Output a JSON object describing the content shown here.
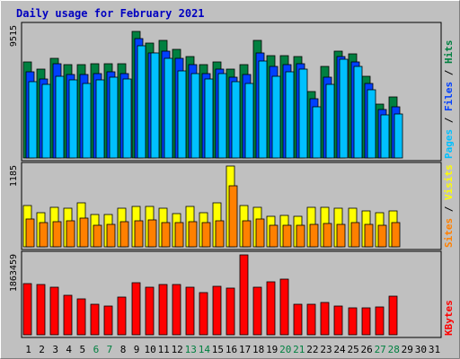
{
  "title": "Daily usage for February 2021",
  "colors": {
    "background": "#c0c0c0",
    "title": "#0000c0",
    "hits": "#008040",
    "files": "#0040ff",
    "pages": "#00c0ff",
    "visits": "#ffff00",
    "sites": "#ff8000",
    "kbytes": "#ff0000",
    "weekday_label": "#000000",
    "weekend_label": "#008040"
  },
  "chart_data": {
    "type": "bar",
    "categories": [
      "1",
      "2",
      "3",
      "4",
      "5",
      "6",
      "7",
      "8",
      "9",
      "10",
      "11",
      "12",
      "13",
      "14",
      "15",
      "16",
      "17",
      "18",
      "19",
      "20",
      "21",
      "22",
      "23",
      "24",
      "25",
      "26",
      "27",
      "28",
      "29",
      "30",
      "31"
    ],
    "weekend_days": [
      "6",
      "7",
      "13",
      "14",
      "20",
      "21",
      "27",
      "28"
    ],
    "panels": [
      {
        "name": "hits-files-pages",
        "max_label": "9515",
        "ymax": 9515,
        "legend": [
          "Pages",
          "Files",
          "Hits"
        ],
        "series": [
          {
            "name": "Hits",
            "color": "#008040",
            "values": [
              6900,
              6400,
              7200,
              6700,
              6700,
              6800,
              6800,
              6800,
              9100,
              8300,
              8500,
              7800,
              7300,
              6700,
              6900,
              6400,
              6700,
              8500,
              7400,
              7400,
              7300,
              4800,
              6600,
              7700,
              7500,
              5900,
              3900,
              4400,
              0,
              0,
              0
            ]
          },
          {
            "name": "Files",
            "color": "#0040ff",
            "values": [
              6200,
              5700,
              6800,
              6000,
              6000,
              6100,
              6200,
              6100,
              8600,
              7600,
              7700,
              7200,
              6700,
              6100,
              6400,
              5800,
              6000,
              7600,
              6600,
              6700,
              6800,
              4300,
              5800,
              7300,
              6900,
              5400,
              3500,
              3700,
              0,
              0,
              0
            ]
          },
          {
            "name": "Pages",
            "color": "#00c0ff",
            "values": [
              5500,
              5300,
              5900,
              5600,
              5400,
              5600,
              5800,
              5700,
              8100,
              7600,
              7200,
              6300,
              6100,
              5700,
              6100,
              5500,
              5400,
              7000,
              5900,
              6200,
              6400,
              3700,
              5300,
              7100,
              6600,
              4900,
              3100,
              3200,
              0,
              0,
              0
            ]
          }
        ]
      },
      {
        "name": "visits-sites",
        "max_label": "1185",
        "ymax": 1185,
        "legend": [
          "Sites",
          "Visits"
        ],
        "series": [
          {
            "name": "Visits",
            "color": "#ffff00",
            "values": [
              600,
              500,
              580,
              570,
              640,
              480,
              480,
              570,
              590,
              590,
              560,
              490,
              590,
              500,
              640,
              1180,
              600,
              580,
              450,
              460,
              450,
              580,
              580,
              560,
              560,
              530,
              500,
              530,
              0,
              0,
              0
            ]
          },
          {
            "name": "Sites",
            "color": "#ff8000",
            "values": [
              410,
              360,
              370,
              380,
              420,
              320,
              330,
              370,
              380,
              400,
              350,
              350,
              370,
              360,
              380,
              890,
              380,
              410,
              310,
              320,
              320,
              330,
              340,
              330,
              360,
              330,
              320,
              360,
              0,
              0,
              0
            ]
          }
        ]
      },
      {
        "name": "kbytes",
        "max_label": "1863459",
        "ymax": 1863459,
        "legend": [
          "KBytes"
        ],
        "series": [
          {
            "name": "KBytes",
            "color": "#ff0000",
            "values": [
              1190000,
              1180000,
              1120000,
              925000,
              835000,
              720000,
              680000,
              880000,
              1210000,
              1120000,
              1180000,
              1170000,
              1100000,
              985000,
              1140000,
              1080000,
              1863459,
              1120000,
              1230000,
              1300000,
              710000,
              710000,
              760000,
              680000,
              620000,
              620000,
              640000,
              900000,
              0,
              0,
              0
            ]
          }
        ]
      }
    ]
  }
}
